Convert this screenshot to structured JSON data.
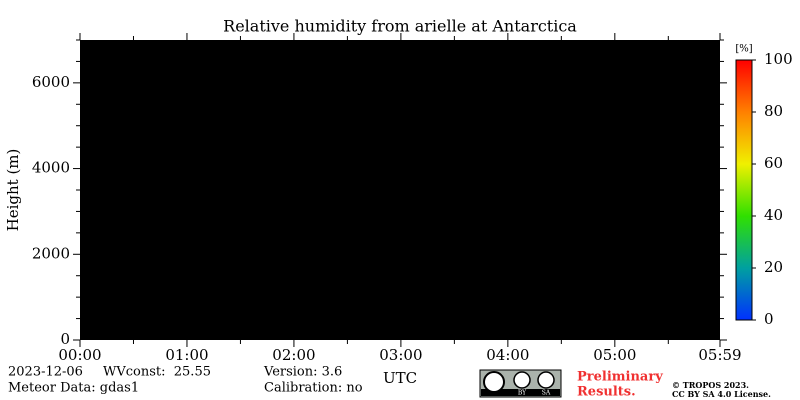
{
  "chart_data": {
    "type": "heatmap",
    "title": "Relative humidity from arielle at Antarctica",
    "y_label": "Height (m)",
    "x_label": "UTC",
    "xlim": [
      0,
      5.9833
    ],
    "ylim": [
      0,
      7000
    ],
    "xticks": [
      {
        "value": 0,
        "label": "00:00"
      },
      {
        "value": 1,
        "label": "01:00"
      },
      {
        "value": 2,
        "label": "02:00"
      },
      {
        "value": 3,
        "label": "03:00"
      },
      {
        "value": 4,
        "label": "04:00"
      },
      {
        "value": 5,
        "label": "05:00"
      },
      {
        "value": 5.9833,
        "label": "05:59"
      }
    ],
    "xminorticks": [
      0.5,
      1.5,
      2.5,
      3.5,
      4.5,
      5.5
    ],
    "yticks": [
      0,
      2000,
      4000,
      6000
    ],
    "yminorticks": [
      500,
      1000,
      1500,
      2500,
      3000,
      3500,
      4500,
      5000,
      5500,
      6500,
      7000
    ],
    "colorbar": {
      "label": "[%]",
      "lim": [
        0,
        100
      ],
      "ticks": [
        0,
        20,
        40,
        60,
        80,
        100
      ]
    },
    "annotations": [
      "2023-12-06",
      "WVconst:  25.55",
      "Meteor Data: gdas1",
      "Version: 3.6",
      "Calibration: no",
      "Preliminary",
      "Results.",
      "© TROPOS 2023.",
      "CC BY SA 4.0 License."
    ],
    "badge": [
      "BY",
      "SA"
    ]
  }
}
